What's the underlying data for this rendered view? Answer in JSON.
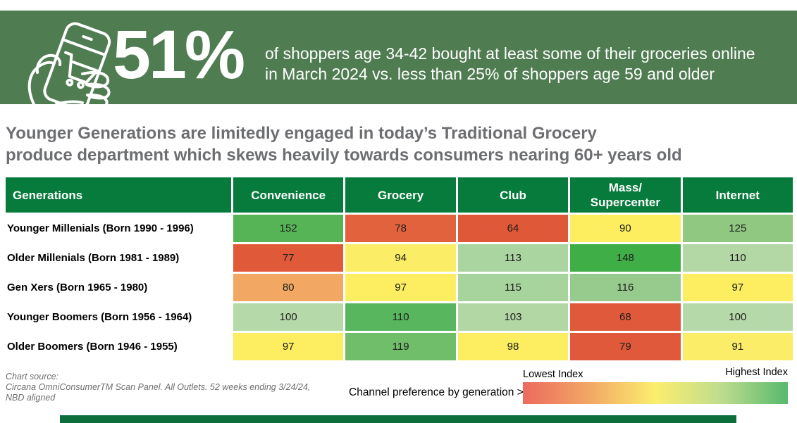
{
  "banner": {
    "stat": "51%",
    "lines": [
      "of shoppers age 34-42 bought at least some of their groceries online",
      "in March 2024 vs. less than 25% of shoppers age 59 and older"
    ],
    "icon": "hand-holding-phone-with-shopping-cart"
  },
  "headline": {
    "lines": [
      "Younger Generations are limitedly engaged in today’s Traditional Grocery",
      "produce department which skews heavily towards consumers nearing 60+ years old"
    ]
  },
  "chart_data": {
    "type": "heatmap",
    "title": "Younger Generations are limitedly engaged in today’s Traditional Grocery produce department which skews heavily towards consumers nearing 60+ years old",
    "row_header": "Generations",
    "columns": [
      "Convenience",
      "Grocery",
      "Club",
      "Mass/\nSupercenter",
      "Internet"
    ],
    "rows": [
      {
        "label": "Younger Millenials (Born 1990 - 1996)",
        "values": [
          152,
          78,
          64,
          90,
          125
        ],
        "colors": [
          "#56b457",
          "#e2623e",
          "#df5838",
          "#fdee60",
          "#90c881"
        ]
      },
      {
        "label": "Older Millenials (Born 1981 - 1989)",
        "values": [
          77,
          94,
          113,
          148,
          110
        ],
        "colors": [
          "#e05a39",
          "#fbee66",
          "#aad4a0",
          "#3fae46",
          "#b3d7a5"
        ]
      },
      {
        "label": "Gen Xers (Born 1965 - 1980)",
        "values": [
          80,
          97,
          115,
          116,
          97
        ],
        "colors": [
          "#f2a862",
          "#fcee60",
          "#a7d39d",
          "#97cb8d",
          "#fcee60"
        ]
      },
      {
        "label": "Younger Boomers (Born 1956 - 1964)",
        "values": [
          100,
          110,
          103,
          68,
          100
        ],
        "colors": [
          "#b6d9a9",
          "#58b75e",
          "#b2d7a5",
          "#e0593a",
          "#b6d9a9"
        ]
      },
      {
        "label": "Older Boomers (Born 1946 - 1955)",
        "values": [
          97,
          119,
          98,
          79,
          91
        ],
        "colors": [
          "#fcee60",
          "#70bd6a",
          "#fcee60",
          "#e0593a",
          "#fbed68"
        ]
      }
    ],
    "legend": {
      "low_label": "Lowest Index",
      "high_label": "Highest Index",
      "gradient": [
        "#ec6a5e",
        "#f2a765",
        "#fbee6e",
        "#bedc8e",
        "#57b96d"
      ]
    },
    "value_scale_note": "index values, conditional color scale red=lowest to green=highest"
  },
  "footer": {
    "source_lines": [
      "Chart source:",
      "Circana OmniConsumerTM Scan Panel. All Outlets. 52 weeks ending 3/24/24,",
      "NBD aligned"
    ],
    "caption": "Channel preference by generation >"
  },
  "colors": {
    "banner_green": "#507c52",
    "header_green": "#077b3c",
    "title_gray": "#6d6e71",
    "bottom_bar_green": "#0c6e3b"
  }
}
